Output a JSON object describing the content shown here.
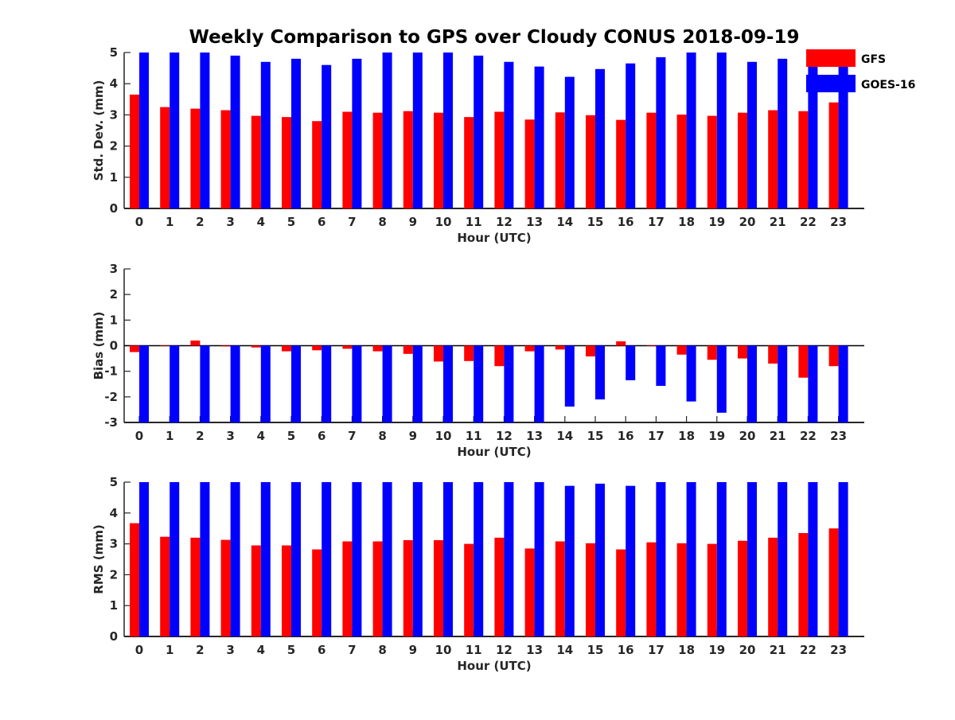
{
  "title": "Weekly Comparison to GPS over Cloudy CONUS 2018-09-19",
  "legend": [
    {
      "label": "GFS",
      "color": "#ff0000"
    },
    {
      "label": "GOES-16",
      "color": "#0000ff"
    }
  ],
  "chart_data": [
    {
      "type": "bar",
      "ylabel": "Std. Dev. (mm)",
      "xlabel": "Hour (UTC)",
      "categories": [
        "0",
        "1",
        "2",
        "3",
        "4",
        "5",
        "6",
        "7",
        "8",
        "9",
        "10",
        "11",
        "12",
        "13",
        "14",
        "15",
        "16",
        "17",
        "18",
        "19",
        "20",
        "21",
        "22",
        "23"
      ],
      "ylim": [
        0,
        5
      ],
      "yticks": [
        0,
        1,
        2,
        3,
        4,
        5
      ],
      "series": [
        {
          "name": "GFS",
          "color": "#ff0000",
          "values": [
            3.65,
            3.25,
            3.2,
            3.15,
            2.97,
            2.93,
            2.8,
            3.1,
            3.07,
            3.12,
            3.07,
            2.93,
            3.1,
            2.85,
            3.08,
            2.99,
            2.84,
            3.07,
            3.01,
            2.97,
            3.07,
            3.15,
            3.12,
            3.4
          ]
        },
        {
          "name": "GOES-16",
          "color": "#0000ff",
          "values": [
            5.0,
            5.0,
            5.0,
            4.9,
            4.7,
            4.8,
            4.6,
            4.8,
            5.0,
            5.0,
            5.0,
            4.9,
            4.7,
            4.55,
            4.22,
            4.47,
            4.65,
            4.85,
            5.0,
            5.0,
            4.7,
            4.8,
            4.8,
            4.7
          ]
        }
      ]
    },
    {
      "type": "bar",
      "ylabel": "Bias (mm)",
      "xlabel": "Hour (UTC)",
      "categories": [
        "0",
        "1",
        "2",
        "3",
        "4",
        "5",
        "6",
        "7",
        "8",
        "9",
        "10",
        "11",
        "12",
        "13",
        "14",
        "15",
        "16",
        "17",
        "18",
        "19",
        "20",
        "21",
        "22",
        "23"
      ],
      "ylim": [
        -3,
        3
      ],
      "yticks": [
        -3,
        -2,
        -1,
        0,
        1,
        2,
        3
      ],
      "zero_line": true,
      "series": [
        {
          "name": "GFS",
          "color": "#ff0000",
          "values": [
            -0.25,
            0.0,
            0.2,
            -0.03,
            -0.07,
            -0.22,
            -0.18,
            -0.12,
            -0.22,
            -0.32,
            -0.62,
            -0.6,
            -0.8,
            -0.22,
            -0.15,
            -0.42,
            0.17,
            0.0,
            -0.35,
            -0.55,
            -0.5,
            -0.7,
            -1.25,
            -0.8
          ]
        },
        {
          "name": "GOES-16",
          "color": "#0000ff",
          "values": [
            -3.0,
            -3.0,
            -3.0,
            -3.0,
            -3.0,
            -3.0,
            -3.0,
            -3.0,
            -3.0,
            -3.0,
            -3.0,
            -3.0,
            -3.0,
            -3.0,
            -2.38,
            -2.1,
            -1.35,
            -1.57,
            -2.18,
            -2.62,
            -3.0,
            -3.0,
            -3.0,
            -3.0
          ]
        }
      ]
    },
    {
      "type": "bar",
      "ylabel": "RMS (mm)",
      "xlabel": "Hour (UTC)",
      "categories": [
        "0",
        "1",
        "2",
        "3",
        "4",
        "5",
        "6",
        "7",
        "8",
        "9",
        "10",
        "11",
        "12",
        "13",
        "14",
        "15",
        "16",
        "17",
        "18",
        "19",
        "20",
        "21",
        "22",
        "23"
      ],
      "ylim": [
        0,
        5
      ],
      "yticks": [
        0,
        1,
        2,
        3,
        4,
        5
      ],
      "series": [
        {
          "name": "GFS",
          "color": "#ff0000",
          "values": [
            3.67,
            3.23,
            3.2,
            3.13,
            2.95,
            2.95,
            2.82,
            3.08,
            3.08,
            3.12,
            3.12,
            3.0,
            3.2,
            2.85,
            3.08,
            3.02,
            2.82,
            3.05,
            3.02,
            3.0,
            3.1,
            3.2,
            3.35,
            3.5
          ]
        },
        {
          "name": "GOES-16",
          "color": "#0000ff",
          "values": [
            5.0,
            5.0,
            5.0,
            5.0,
            5.0,
            5.0,
            5.0,
            5.0,
            5.0,
            5.0,
            5.0,
            5.0,
            5.0,
            5.0,
            4.88,
            4.95,
            4.88,
            5.0,
            5.0,
            5.0,
            5.0,
            5.0,
            5.0,
            5.0
          ]
        }
      ]
    }
  ]
}
